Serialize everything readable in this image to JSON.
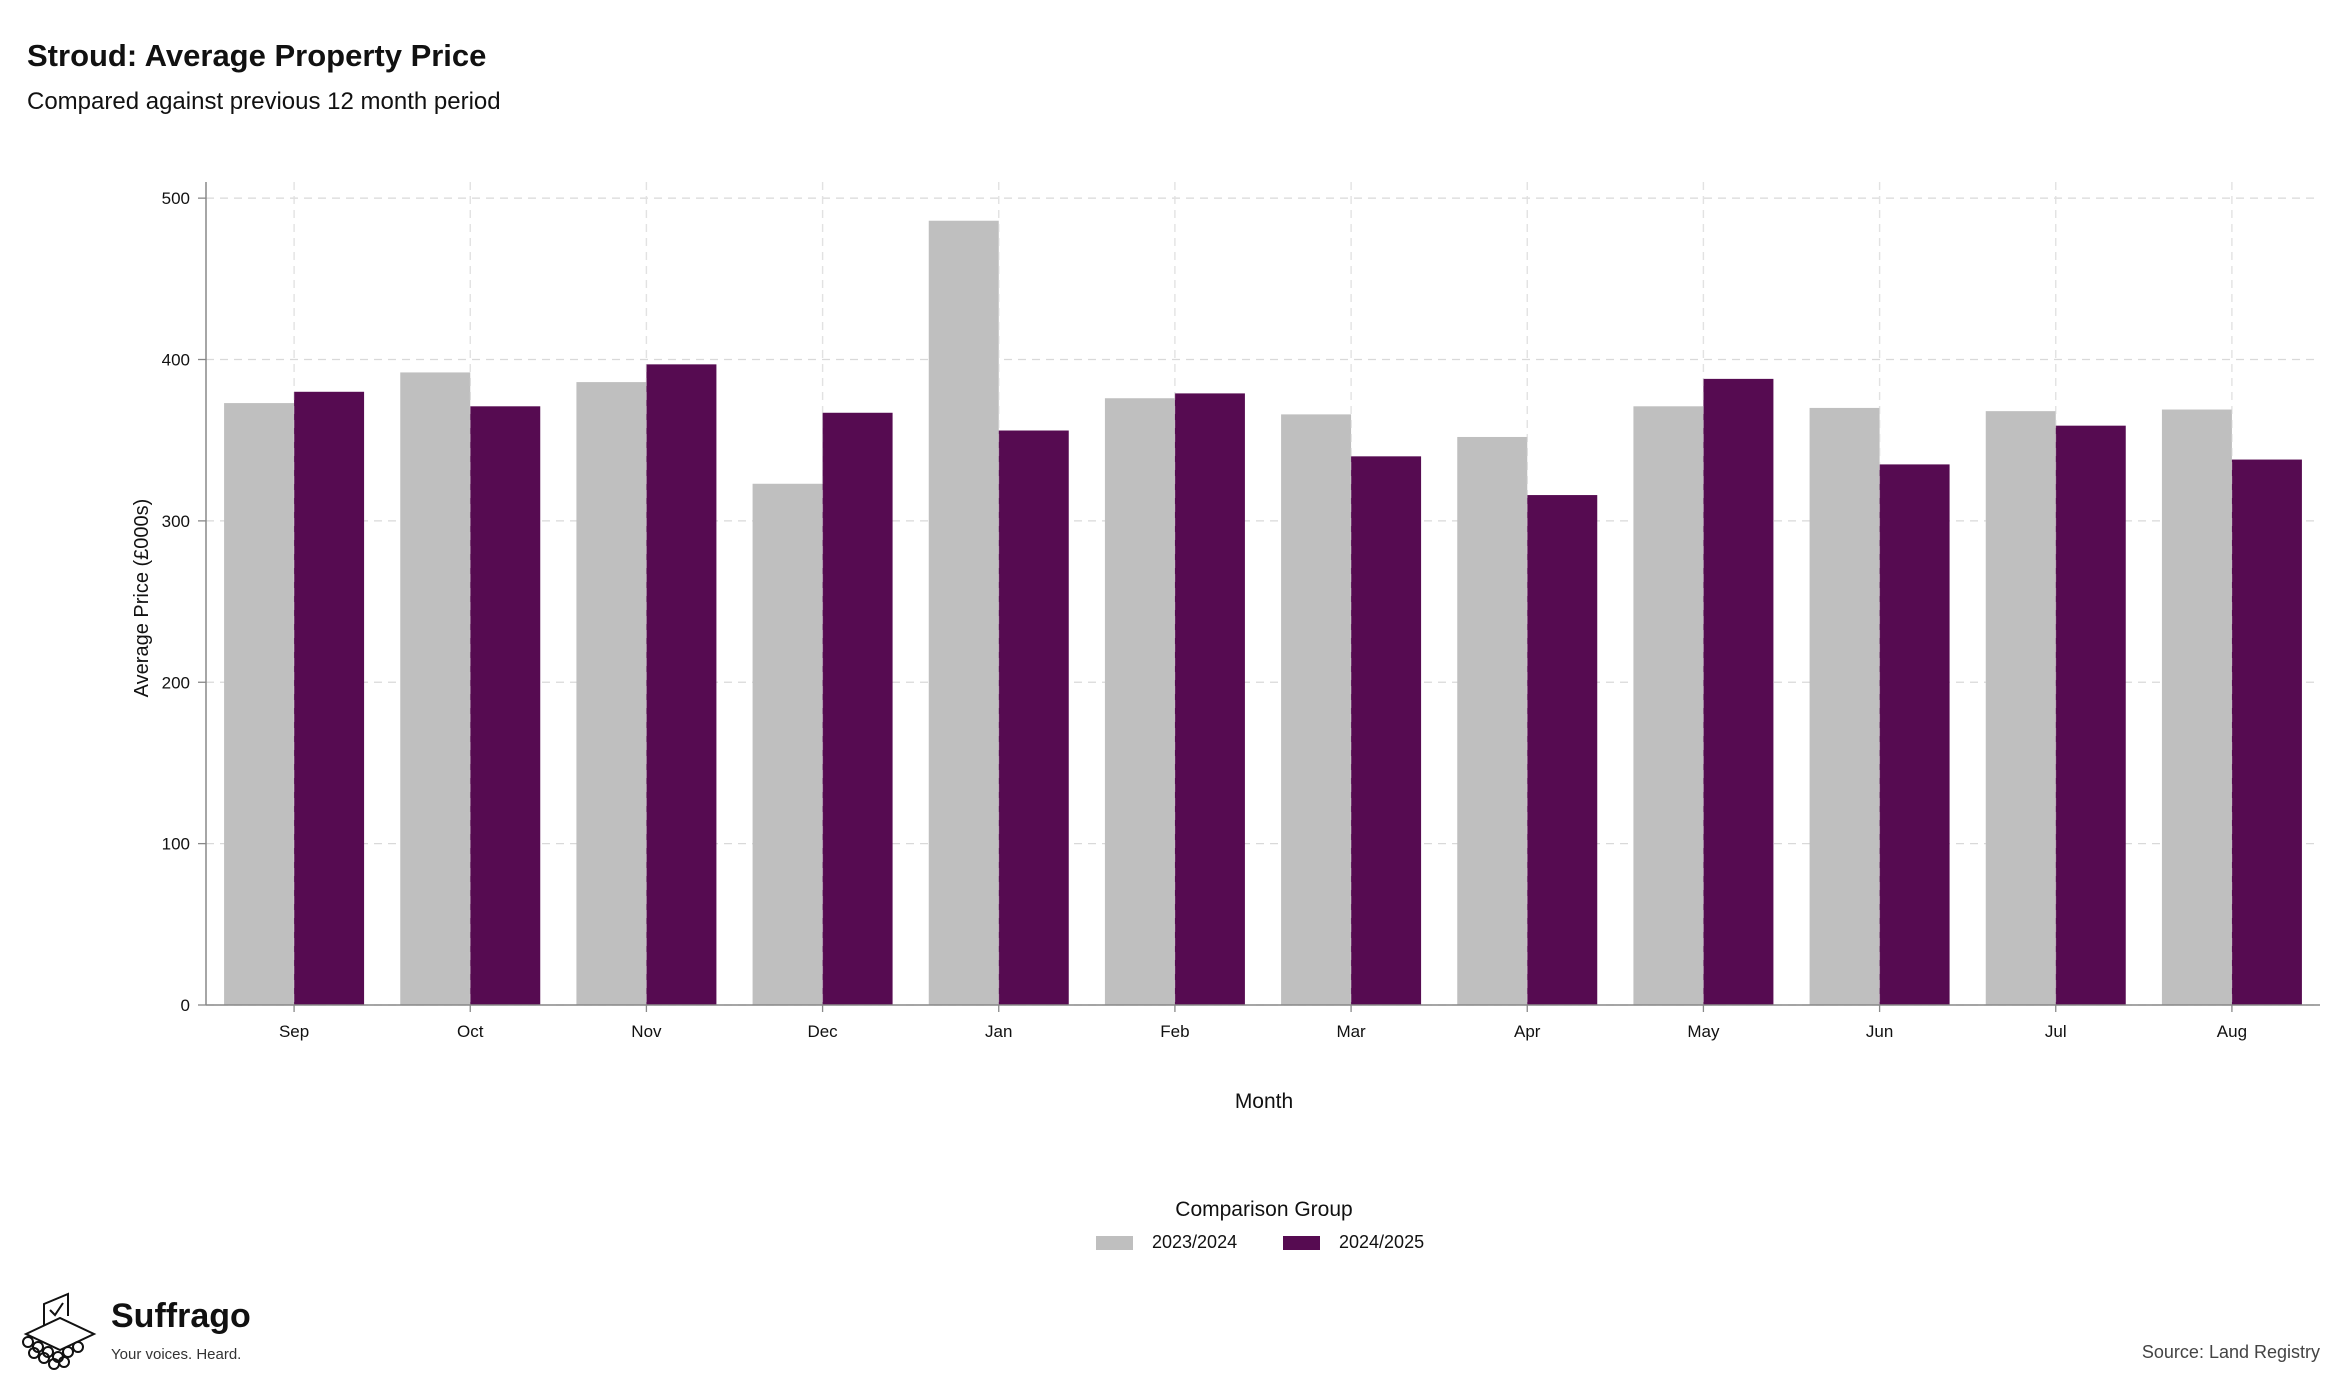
{
  "chart_data": {
    "type": "bar",
    "title": "Stroud: Average Property Price",
    "subtitle": "Compared against previous 12 month period",
    "xlabel": "Month",
    "ylabel": "Average Price (£000s)",
    "ylim": [
      0,
      510
    ],
    "yticks": [
      0,
      100,
      200,
      300,
      400,
      500
    ],
    "categories": [
      "Sep",
      "Oct",
      "Nov",
      "Dec",
      "Jan",
      "Feb",
      "Mar",
      "Apr",
      "May",
      "Jun",
      "Jul",
      "Aug"
    ],
    "series": [
      {
        "name": "2023/2024",
        "color": "#bfbfbf",
        "values": [
          373,
          392,
          386,
          323,
          486,
          376,
          366,
          352,
          371,
          370,
          368,
          369
        ]
      },
      {
        "name": "2024/2025",
        "color": "#560b51",
        "values": [
          380,
          371,
          397,
          367,
          356,
          379,
          340,
          316,
          388,
          335,
          359,
          338
        ]
      }
    ],
    "grid": true,
    "legend_title": "Comparison Group",
    "legend_position": "bottom-center"
  },
  "footer": {
    "brand": "Suffrago",
    "tagline": "Your voices. Heard.",
    "source": "Source: Land Registry"
  }
}
